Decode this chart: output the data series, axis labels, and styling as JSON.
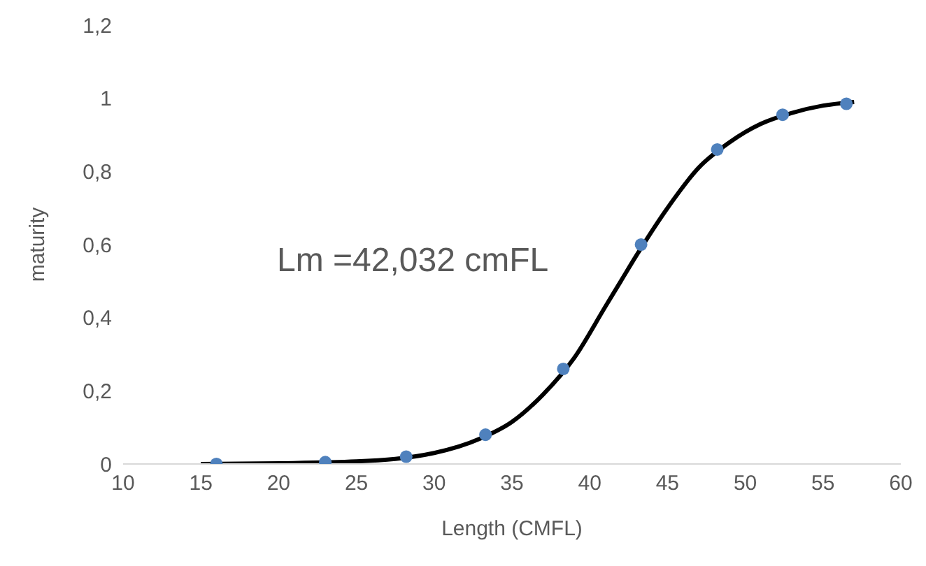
{
  "chart_data": {
    "type": "scatter",
    "xlabel": "Length (CMFL)",
    "ylabel": "maturity",
    "annotations": [
      "Lm =42,032 cmFL"
    ],
    "xlim": [
      10,
      60
    ],
    "xticks": [
      10,
      15,
      20,
      25,
      30,
      35,
      40,
      45,
      50,
      55,
      60
    ],
    "ylim": [
      0,
      1.2
    ],
    "yticks": [
      0,
      {
        "value": 0.2,
        "label": "0,2"
      },
      {
        "value": 0.4,
        "label": "0,4"
      },
      {
        "value": 0.6,
        "label": "0,6"
      },
      {
        "value": 0.8,
        "label": "0,8"
      },
      1,
      {
        "value": 1.2,
        "label": "1,2"
      }
    ],
    "marker": "circle",
    "series": [
      {
        "type": "line",
        "marker": "none",
        "color": "#000000",
        "line_style": "solid",
        "x": [
          15,
          20,
          25,
          30,
          33,
          35,
          37,
          39,
          41,
          42,
          43,
          45,
          47,
          49,
          51,
          53,
          55,
          57
        ],
        "values": [
          0,
          0.002,
          0.007,
          0.03,
          0.07,
          0.115,
          0.19,
          0.29,
          0.43,
          0.5,
          0.57,
          0.7,
          0.81,
          0.88,
          0.93,
          0.96,
          0.98,
          0.99
        ]
      },
      {
        "color": "#4f81bd",
        "x": [
          16,
          23,
          28.2,
          33.3,
          38.3,
          43.3,
          48.2,
          52.4,
          56.5
        ],
        "values": [
          0,
          0.005,
          0.02,
          0.08,
          0.26,
          0.6,
          0.86,
          0.955,
          0.985
        ]
      }
    ]
  }
}
